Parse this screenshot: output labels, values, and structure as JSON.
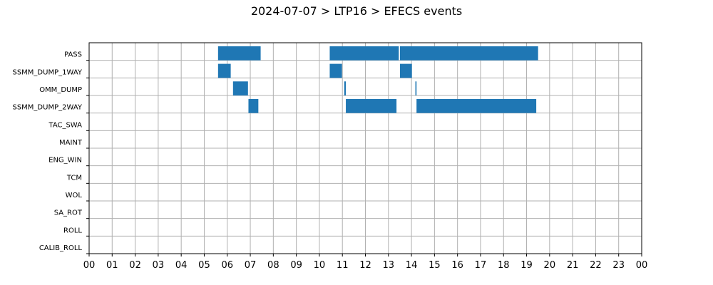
{
  "chart_data": {
    "type": "bar",
    "orientation": "horizontal-timeline",
    "title": "2024-07-07 > LTP16 > EFECS events",
    "xlabel": "",
    "ylabel": "",
    "grid": true,
    "bar_color": "#1f77b4",
    "xlim": [
      0,
      24
    ],
    "x_tick_labels": [
      "00",
      "01",
      "02",
      "03",
      "04",
      "05",
      "06",
      "07",
      "08",
      "09",
      "10",
      "11",
      "12",
      "13",
      "14",
      "15",
      "16",
      "17",
      "18",
      "19",
      "20",
      "21",
      "22",
      "23",
      "00"
    ],
    "categories": [
      "PASS",
      "SSMM_DUMP_1WAY",
      "OMM_DUMP",
      "SSMM_DUMP_2WAY",
      "TAC_SWA",
      "MAINT",
      "ENG_WIN",
      "TCM",
      "WOL",
      "SA_ROT",
      "ROLL",
      "CALIB_ROLL"
    ],
    "events": [
      {
        "category": "PASS",
        "start": 5.6,
        "end": 7.45
      },
      {
        "category": "PASS",
        "start": 10.45,
        "end": 13.45
      },
      {
        "category": "PASS",
        "start": 13.5,
        "end": 19.5
      },
      {
        "category": "SSMM_DUMP_1WAY",
        "start": 5.6,
        "end": 6.15
      },
      {
        "category": "SSMM_DUMP_1WAY",
        "start": 10.45,
        "end": 10.98
      },
      {
        "category": "SSMM_DUMP_1WAY",
        "start": 13.5,
        "end": 14.02
      },
      {
        "category": "OMM_DUMP",
        "start": 6.25,
        "end": 6.9
      },
      {
        "category": "OMM_DUMP",
        "start": 11.08,
        "end": 11.15
      },
      {
        "category": "OMM_DUMP",
        "start": 14.17,
        "end": 14.22
      },
      {
        "category": "SSMM_DUMP_2WAY",
        "start": 6.92,
        "end": 7.35
      },
      {
        "category": "SSMM_DUMP_2WAY",
        "start": 11.15,
        "end": 13.35
      },
      {
        "category": "SSMM_DUMP_2WAY",
        "start": 14.22,
        "end": 19.42
      }
    ]
  }
}
